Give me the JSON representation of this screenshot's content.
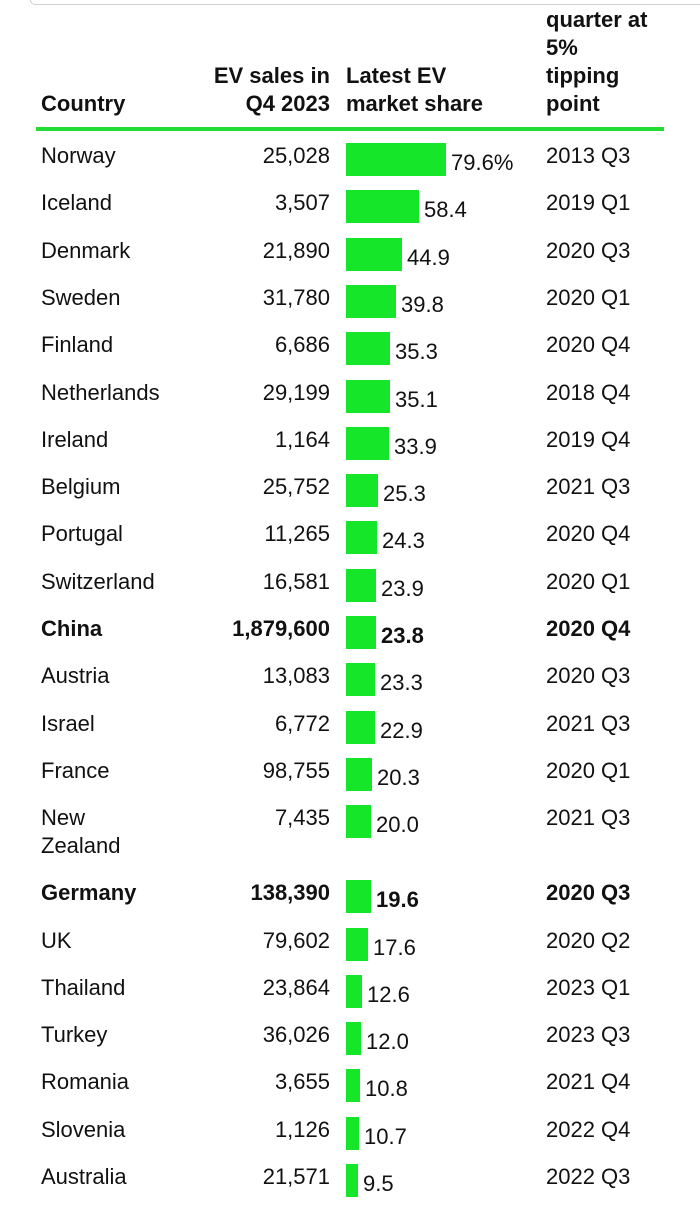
{
  "colors": {
    "bar": "#16e62a",
    "rule": "#22dd33"
  },
  "header": {
    "country": "Country",
    "sales": "EV sales in\nQ4 2023",
    "share": "Latest EV\nmarket share",
    "tipping": "quarter at\n5%\ntipping\npoint"
  },
  "chart_data": {
    "type": "table",
    "columns": [
      "Country",
      "EV sales in Q4 2023",
      "Latest EV market share",
      "quarter at 5% tipping point"
    ],
    "rows": [
      {
        "country": "Norway",
        "sales": "25,028",
        "share": 79.6,
        "share_label": "79.6%",
        "tipping": "2013 Q3",
        "bold": false
      },
      {
        "country": "Iceland",
        "sales": "3,507",
        "share": 58.4,
        "share_label": "58.4",
        "tipping": "2019 Q1",
        "bold": false
      },
      {
        "country": "Denmark",
        "sales": "21,890",
        "share": 44.9,
        "share_label": "44.9",
        "tipping": "2020 Q3",
        "bold": false
      },
      {
        "country": "Sweden",
        "sales": "31,780",
        "share": 39.8,
        "share_label": "39.8",
        "tipping": "2020 Q1",
        "bold": false
      },
      {
        "country": "Finland",
        "sales": "6,686",
        "share": 35.3,
        "share_label": "35.3",
        "tipping": "2020 Q4",
        "bold": false
      },
      {
        "country": "Netherlands",
        "sales": "29,199",
        "share": 35.1,
        "share_label": "35.1",
        "tipping": "2018 Q4",
        "bold": false
      },
      {
        "country": "Ireland",
        "sales": "1,164",
        "share": 33.9,
        "share_label": "33.9",
        "tipping": "2019 Q4",
        "bold": false
      },
      {
        "country": "Belgium",
        "sales": "25,752",
        "share": 25.3,
        "share_label": "25.3",
        "tipping": "2021 Q3",
        "bold": false
      },
      {
        "country": "Portugal",
        "sales": "11,265",
        "share": 24.3,
        "share_label": "24.3",
        "tipping": "2020 Q4",
        "bold": false
      },
      {
        "country": "Switzerland",
        "sales": "16,581",
        "share": 23.9,
        "share_label": "23.9",
        "tipping": "2020 Q1",
        "bold": false
      },
      {
        "country": "China",
        "sales": "1,879,600",
        "share": 23.8,
        "share_label": "23.8",
        "tipping": "2020 Q4",
        "bold": true
      },
      {
        "country": "Austria",
        "sales": "13,083",
        "share": 23.3,
        "share_label": "23.3",
        "tipping": "2020 Q3",
        "bold": false
      },
      {
        "country": "Israel",
        "sales": "6,772",
        "share": 22.9,
        "share_label": "22.9",
        "tipping": "2021 Q3",
        "bold": false
      },
      {
        "country": "France",
        "sales": "98,755",
        "share": 20.3,
        "share_label": "20.3",
        "tipping": "2020 Q1",
        "bold": false
      },
      {
        "country": "New\nZealand",
        "sales": "7,435",
        "share": 20.0,
        "share_label": "20.0",
        "tipping": "2021 Q3",
        "bold": false
      },
      {
        "country": "Germany",
        "sales": "138,390",
        "share": 19.6,
        "share_label": "19.6",
        "tipping": "2020 Q3",
        "bold": true
      },
      {
        "country": "UK",
        "sales": "79,602",
        "share": 17.6,
        "share_label": "17.6",
        "tipping": "2020 Q2",
        "bold": false
      },
      {
        "country": "Thailand",
        "sales": "23,864",
        "share": 12.6,
        "share_label": "12.6",
        "tipping": "2023 Q1",
        "bold": false
      },
      {
        "country": "Turkey",
        "sales": "36,026",
        "share": 12.0,
        "share_label": "12.0",
        "tipping": "2023 Q3",
        "bold": false
      },
      {
        "country": "Romania",
        "sales": "3,655",
        "share": 10.8,
        "share_label": "10.8",
        "tipping": "2021 Q4",
        "bold": false
      },
      {
        "country": "Slovenia",
        "sales": "1,126",
        "share": 10.7,
        "share_label": "10.7",
        "tipping": "2022 Q4",
        "bold": false
      },
      {
        "country": "Australia",
        "sales": "21,571",
        "share": 9.5,
        "share_label": "9.5",
        "tipping": "2022 Q3",
        "bold": false
      }
    ]
  }
}
